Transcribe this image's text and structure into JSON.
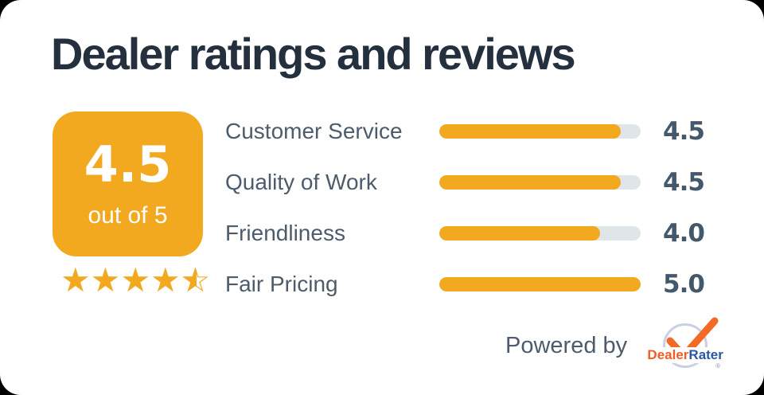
{
  "title": "Dealer ratings and reviews",
  "summary": {
    "score": "4.5",
    "out_of_label": "out of 5",
    "stars_full": 4,
    "stars_half": 1,
    "stars_total": 5
  },
  "icons": {
    "star_filled": "★",
    "star_outline": "☆"
  },
  "chart_data": {
    "type": "bar",
    "categories": [
      "Customer Service",
      "Quality of Work",
      "Friendliness",
      "Fair Pricing"
    ],
    "values": [
      4.5,
      4.5,
      4.0,
      5.0
    ],
    "value_labels": [
      "4.5",
      "4.5",
      "4.0",
      "5.0"
    ],
    "xlim": [
      0,
      5
    ],
    "title": "Dealer ratings and reviews"
  },
  "ratings": [
    {
      "label": "Customer Service",
      "value": "4.5",
      "percent": 90
    },
    {
      "label": "Quality of Work",
      "value": "4.5",
      "percent": 90
    },
    {
      "label": "Friendliness",
      "value": "4.0",
      "percent": 80
    },
    {
      "label": "Fair Pricing",
      "value": "5.0",
      "percent": 100
    }
  ],
  "footer": {
    "powered_by": "Powered by",
    "brand_part1": "Dealer",
    "brand_part2": "Rater",
    "registered_mark": "®"
  },
  "colors": {
    "accent": "#F2A81F",
    "track": "#E0E5EA",
    "title_text": "#24303E",
    "label_text": "#4C5C6C",
    "value_text": "#44586C",
    "badge_text": "#FFFFFF",
    "brand_orange": "#F15C25",
    "brand_blue": "#2B56A7",
    "logo_ring": "#C9D0E2",
    "card_background": "#FFFFFF"
  }
}
